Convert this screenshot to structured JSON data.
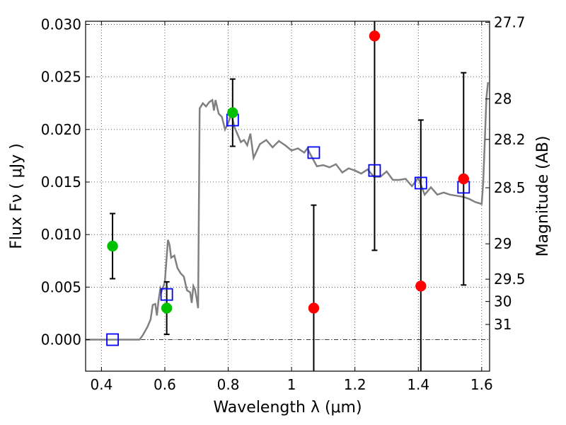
{
  "chart_data": {
    "type": "scatter",
    "xlabel": "Wavelength  λ (μm)",
    "ylabel": "Flux  Fν  ( μJy )",
    "y2label": "Magnitude (AB)",
    "xlim": [
      0.35,
      1.625
    ],
    "ylim": [
      -0.003,
      0.0303
    ],
    "grid": true,
    "x_ticks": [
      {
        "value": 0.4,
        "label": "0.4"
      },
      {
        "value": 0.6,
        "label": "0.6"
      },
      {
        "value": 0.8,
        "label": "0.8"
      },
      {
        "value": 1.0,
        "label": "1"
      },
      {
        "value": 1.2,
        "label": "1.2"
      },
      {
        "value": 1.4,
        "label": "1.4"
      },
      {
        "value": 1.6,
        "label": "1.6"
      }
    ],
    "y_ticks": [
      {
        "value": 0.0,
        "label": "0.000"
      },
      {
        "value": 0.005,
        "label": "0.005"
      },
      {
        "value": 0.01,
        "label": "0.010"
      },
      {
        "value": 0.015,
        "label": "0.015"
      },
      {
        "value": 0.02,
        "label": "0.020"
      },
      {
        "value": 0.025,
        "label": "0.025"
      },
      {
        "value": 0.03,
        "label": "0.030"
      }
    ],
    "y2_ticks": [
      {
        "mag": 27.7,
        "label": "27.7"
      },
      {
        "mag": 28.0,
        "label": "28"
      },
      {
        "mag": 28.2,
        "label": "28.2"
      },
      {
        "mag": 28.5,
        "label": "28.5"
      },
      {
        "mag": 29.0,
        "label": "29"
      },
      {
        "mag": 29.5,
        "label": "29.5"
      },
      {
        "mag": 30.0,
        "label": "30"
      },
      {
        "mag": 31.0,
        "label": "31"
      }
    ],
    "model_spectrum": {
      "color": "#808080",
      "x": [
        0.35,
        0.52,
        0.53,
        0.545,
        0.555,
        0.562,
        0.57,
        0.575,
        0.58,
        0.586,
        0.59,
        0.595,
        0.6,
        0.605,
        0.61,
        0.615,
        0.62,
        0.63,
        0.64,
        0.65,
        0.66,
        0.67,
        0.68,
        0.685,
        0.69,
        0.695,
        0.7,
        0.705,
        0.71,
        0.72,
        0.73,
        0.74,
        0.75,
        0.755,
        0.76,
        0.77,
        0.78,
        0.79,
        0.8,
        0.81,
        0.82,
        0.83,
        0.84,
        0.85,
        0.86,
        0.87,
        0.88,
        0.9,
        0.92,
        0.94,
        0.96,
        0.98,
        1.0,
        1.02,
        1.04,
        1.05,
        1.06,
        1.08,
        1.1,
        1.12,
        1.14,
        1.16,
        1.18,
        1.2,
        1.22,
        1.24,
        1.26,
        1.28,
        1.3,
        1.32,
        1.34,
        1.36,
        1.38,
        1.4,
        1.42,
        1.44,
        1.46,
        1.48,
        1.5,
        1.52,
        1.54,
        1.56,
        1.58,
        1.6,
        1.605,
        1.61,
        1.615,
        1.62
      ],
      "y": [
        0.0,
        0.0,
        0.0004,
        0.0012,
        0.0019,
        0.0033,
        0.0034,
        0.0023,
        0.0037,
        0.0049,
        0.0046,
        0.005,
        0.0055,
        0.0075,
        0.0095,
        0.009,
        0.0078,
        0.008,
        0.0068,
        0.0063,
        0.006,
        0.0047,
        0.0045,
        0.0035,
        0.0051,
        0.0048,
        0.004,
        0.003,
        0.022,
        0.0225,
        0.0222,
        0.0226,
        0.0228,
        0.0218,
        0.0228,
        0.0215,
        0.0212,
        0.02,
        0.0206,
        0.0215,
        0.0202,
        0.0195,
        0.0188,
        0.019,
        0.0185,
        0.0196,
        0.0173,
        0.0186,
        0.019,
        0.0183,
        0.0189,
        0.0185,
        0.018,
        0.0182,
        0.0178,
        0.0182,
        0.0176,
        0.0165,
        0.0166,
        0.0164,
        0.0167,
        0.0159,
        0.0163,
        0.0161,
        0.0158,
        0.0162,
        0.0155,
        0.0155,
        0.016,
        0.0152,
        0.0152,
        0.0153,
        0.0146,
        0.0154,
        0.0138,
        0.0145,
        0.0138,
        0.014,
        0.0138,
        0.0137,
        0.0136,
        0.0134,
        0.0131,
        0.0129,
        0.015,
        0.019,
        0.023,
        0.0245
      ]
    },
    "series": [
      {
        "marker": "circle",
        "color": "#00c000",
        "points": [
          {
            "x": 0.435,
            "y": 0.0089,
            "yerr": 0.0031
          },
          {
            "x": 0.606,
            "y": 0.003,
            "yerr": 0.0025
          },
          {
            "x": 0.814,
            "y": 0.0216,
            "yerr": 0.0032
          }
        ]
      },
      {
        "marker": "circle",
        "color": "#ff0000",
        "points": [
          {
            "x": 1.07,
            "y": 0.003,
            "yerr": 0.0098
          },
          {
            "x": 1.262,
            "y": 0.0289,
            "yerr": 0.0204
          },
          {
            "x": 1.408,
            "y": 0.0051,
            "yerr": 0.0158
          },
          {
            "x": 1.543,
            "y": 0.0153,
            "yerr": 0.0101
          }
        ]
      },
      {
        "marker": "square-open",
        "color": "#0000ff",
        "points": [
          {
            "x": 0.435,
            "y": 0.0
          },
          {
            "x": 0.606,
            "y": 0.0043
          },
          {
            "x": 0.814,
            "y": 0.0209
          },
          {
            "x": 1.07,
            "y": 0.0178
          },
          {
            "x": 1.262,
            "y": 0.0161
          },
          {
            "x": 1.408,
            "y": 0.0149
          },
          {
            "x": 1.543,
            "y": 0.0145
          }
        ]
      }
    ]
  }
}
